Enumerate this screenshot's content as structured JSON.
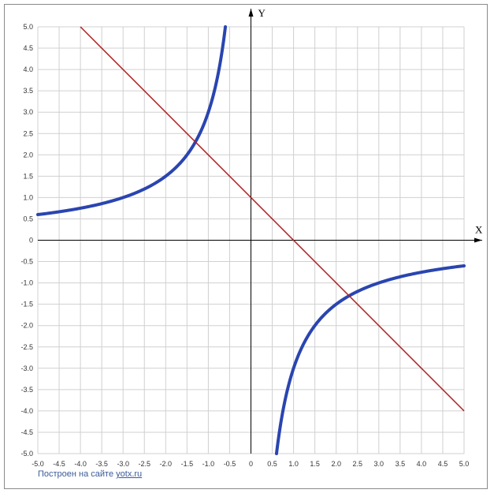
{
  "chart_data": {
    "type": "line",
    "x_axis_label": "X",
    "y_axis_label": "Y",
    "xlim": [
      -5,
      5
    ],
    "ylim": [
      -5,
      5
    ],
    "grid": true,
    "grid_step": 0.5,
    "x_ticks": [
      "-5.0",
      "-4.5",
      "-4.0",
      "-3.5",
      "-3.0",
      "-2.5",
      "-2.0",
      "-1.5",
      "-1.0",
      "-0.5",
      "0",
      "0.5",
      "1.0",
      "1.5",
      "2.0",
      "2.5",
      "3.0",
      "3.5",
      "4.0",
      "4.5",
      "5.0"
    ],
    "y_ticks": [
      "5.0",
      "4.5",
      "4.0",
      "3.5",
      "3.0",
      "2.5",
      "2.0",
      "1.5",
      "1.0",
      "0.5",
      "0",
      "-0.5",
      "-1.0",
      "-1.5",
      "-2.0",
      "-2.5",
      "-3.0",
      "-3.5",
      "-4.0",
      "-4.5",
      "-5.0"
    ],
    "series": [
      {
        "color": "#2a45b0",
        "x": [
          -5.0,
          -4.5,
          -4.0,
          -3.5,
          -3.0,
          -2.5,
          -2.0,
          -1.5,
          -1.2,
          -1.0,
          -0.9,
          -0.8,
          -0.7,
          -0.6,
          0.6,
          0.7,
          0.8,
          0.9,
          1.0,
          1.2,
          1.5,
          2.0,
          2.5,
          3.0,
          3.5,
          4.0,
          4.5,
          5.0
        ],
        "values": [
          0.6,
          0.67,
          0.75,
          0.86,
          1.0,
          1.2,
          1.5,
          2.0,
          2.5,
          3.0,
          3.33,
          3.75,
          4.29,
          5.0,
          -5.0,
          -4.29,
          -3.75,
          -3.33,
          -3.0,
          -2.5,
          -2.0,
          -1.5,
          -1.2,
          -1.0,
          -0.86,
          -0.75,
          -0.67,
          -0.6
        ]
      },
      {
        "color": "#b02020",
        "x": [
          -4.0,
          5.0
        ],
        "values": [
          5.0,
          -4.0
        ]
      }
    ]
  },
  "footer": {
    "text": "Построен на сайте ",
    "link": "yotx.ru"
  }
}
